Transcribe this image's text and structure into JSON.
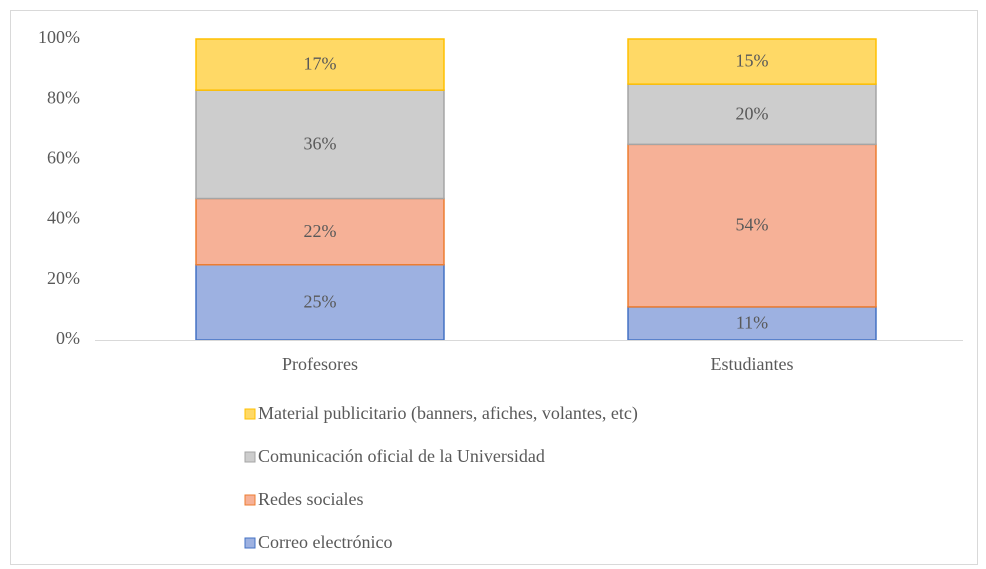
{
  "chart_data": {
    "type": "stacked_bar",
    "categories": [
      "Profesores",
      "Estudiantes"
    ],
    "series": [
      {
        "name": "Correo electrónico",
        "color": "#9db1e1",
        "border_color": "#4472c4",
        "values": [
          25,
          11
        ],
        "value_labels": [
          "25%",
          "11%"
        ]
      },
      {
        "name": "Redes sociales",
        "color": "#f6b197",
        "border_color": "#ed7d31",
        "values": [
          22,
          54
        ],
        "value_labels": [
          "22%",
          "54%"
        ]
      },
      {
        "name": "Comunicación oficial de la Universidad",
        "color": "#cdcdcd",
        "border_color": "#a5a5a5",
        "values": [
          36,
          20
        ],
        "value_labels": [
          "36%",
          "20%"
        ]
      },
      {
        "name": "Material publicitario (banners, afiches, volantes, etc)",
        "color": "#ffd966",
        "border_color": "#ffc000",
        "values": [
          17,
          15
        ],
        "value_labels": [
          "17%",
          "15%"
        ]
      }
    ],
    "ylim": [
      0,
      100
    ],
    "yticks": [
      {
        "value": 0,
        "label": "0%"
      },
      {
        "value": 20,
        "label": "20%"
      },
      {
        "value": 40,
        "label": "40%"
      },
      {
        "value": 60,
        "label": "60%"
      },
      {
        "value": 80,
        "label": "80%"
      },
      {
        "value": 100,
        "label": "100%"
      }
    ],
    "grid": false,
    "legend": "bottom"
  }
}
